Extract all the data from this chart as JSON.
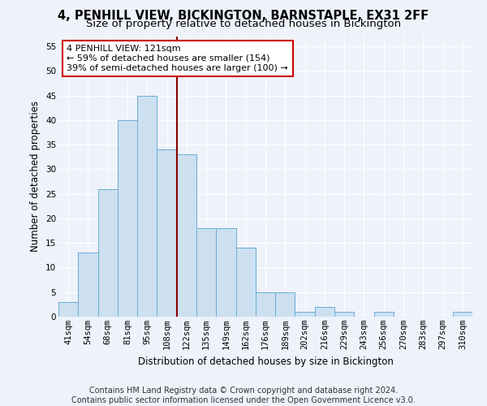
{
  "title": "4, PENHILL VIEW, BICKINGTON, BARNSTAPLE, EX31 2FF",
  "subtitle": "Size of property relative to detached houses in Bickington",
  "xlabel": "Distribution of detached houses by size in Bickington",
  "ylabel": "Number of detached properties",
  "bar_labels": [
    "41sqm",
    "54sqm",
    "68sqm",
    "81sqm",
    "95sqm",
    "108sqm",
    "122sqm",
    "135sqm",
    "149sqm",
    "162sqm",
    "176sqm",
    "189sqm",
    "202sqm",
    "216sqm",
    "229sqm",
    "243sqm",
    "256sqm",
    "270sqm",
    "283sqm",
    "297sqm",
    "310sqm"
  ],
  "bar_values": [
    3,
    13,
    26,
    40,
    45,
    34,
    33,
    18,
    18,
    14,
    5,
    5,
    1,
    2,
    1,
    0,
    1,
    0,
    0,
    0,
    1
  ],
  "bar_color": "#cce0f0",
  "bar_edge_color": "#6aaed6",
  "ylim": [
    0,
    57
  ],
  "yticks": [
    0,
    5,
    10,
    15,
    20,
    25,
    30,
    35,
    40,
    45,
    50,
    55
  ],
  "vline_index": 5.5,
  "annotation_line1": "4 PENHILL VIEW: 121sqm",
  "annotation_line2": "← 59% of detached houses are smaller (154)",
  "annotation_line3": "39% of semi-detached houses are larger (100) →",
  "annotation_box_color": "white",
  "annotation_box_edge_color": "#cc0000",
  "vline_color": "#880000",
  "footer_line1": "Contains HM Land Registry data © Crown copyright and database right 2024.",
  "footer_line2": "Contains public sector information licensed under the Open Government Licence v3.0.",
  "background_color": "#eef2fa",
  "grid_color": "white",
  "title_fontsize": 10.5,
  "subtitle_fontsize": 9.5,
  "axis_label_fontsize": 8.5,
  "tick_fontsize": 7.5,
  "annotation_fontsize": 8,
  "footer_fontsize": 7
}
